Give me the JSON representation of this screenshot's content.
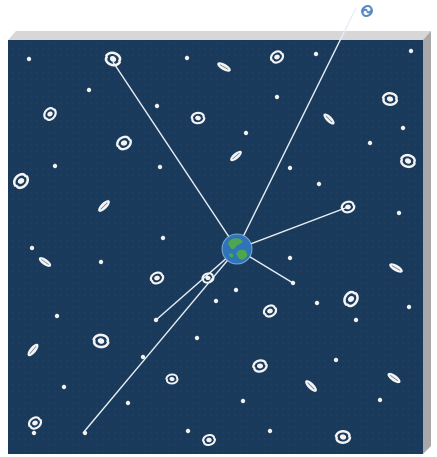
{
  "scene": {
    "colors": {
      "background": "#ffffff",
      "space_panel": "#1a3a5c",
      "panel_edge_right": "#a8a8a8",
      "panel_edge_top": "#d7d7d7",
      "sight_line": "#e8eef6",
      "galaxy": "#f4f4f4",
      "star": "#f1f1f1",
      "earth_ocean": "#2f74b8",
      "earth_land": "#4ea64f",
      "outside_galaxy": "#5a88c2"
    },
    "icons": {
      "earth": "earth-icon",
      "galaxy": "galaxy-icon",
      "star": "star-icon",
      "outside_galaxy": "outside-galaxy-icon"
    }
  }
}
